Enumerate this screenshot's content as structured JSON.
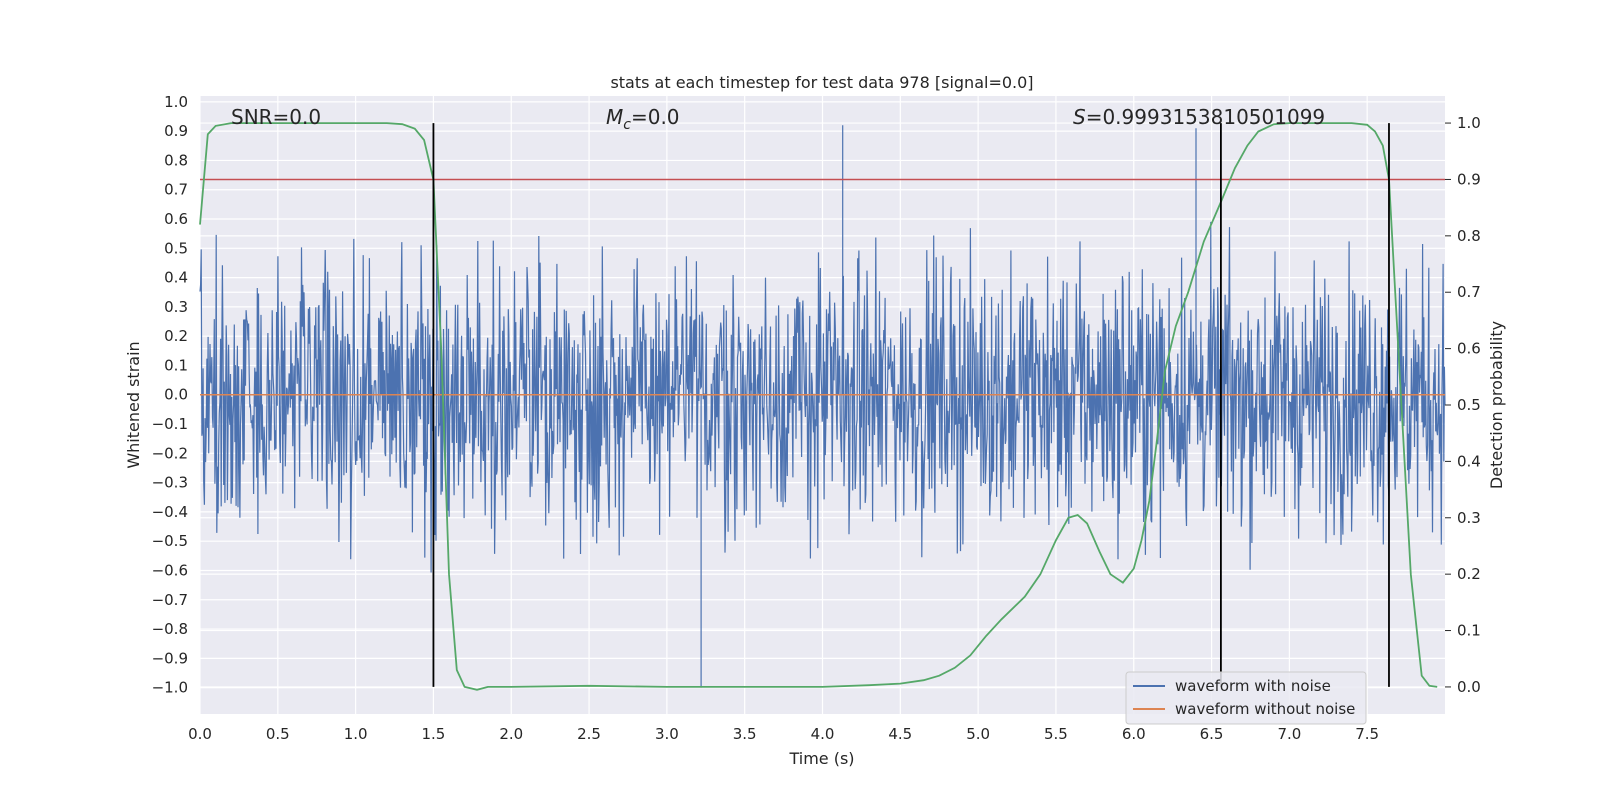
{
  "chart_data": {
    "type": "line",
    "title": "stats at each timestep for test data 978 [signal=0.0]",
    "xlabel": "Time (s)",
    "ylabel": "Whitened strain",
    "y2label": "Detection probability",
    "xlim": [
      0.0,
      8.0
    ],
    "ylim": [
      -1.09,
      1.02
    ],
    "y2lim": [
      -0.048,
      1.048
    ],
    "xticks": [
      "0.0",
      "0.5",
      "1.0",
      "1.5",
      "2.0",
      "2.5",
      "3.0",
      "3.5",
      "4.0",
      "4.5",
      "5.0",
      "5.5",
      "6.0",
      "6.5",
      "7.0",
      "7.5"
    ],
    "yticks": [
      "1.0",
      "0.9",
      "0.8",
      "0.7",
      "0.6",
      "0.5",
      "0.4",
      "0.3",
      "0.2",
      "0.1",
      "0.0",
      "-0.1",
      "-0.2",
      "-0.3",
      "-0.4",
      "-0.5",
      "-0.6",
      "-0.7",
      "-0.8",
      "-0.9",
      "-1.0"
    ],
    "y2ticks": [
      "1.0",
      "0.9",
      "0.8",
      "0.7",
      "0.6",
      "0.5",
      "0.4",
      "0.3",
      "0.2",
      "0.1",
      "0.0"
    ],
    "annotations": {
      "snr": "SNR=0.0",
      "mc_symbol": "M",
      "mc_sub": "c",
      "mc_value": "=0.0",
      "s_symbol": "S",
      "s_value": "=0.9993153810501099"
    },
    "threshold": 0.9,
    "vertical_lines_time": [
      1.5,
      6.56,
      7.64
    ],
    "series": [
      {
        "name": "waveform with noise",
        "color": "#4c72b0",
        "axis": "left",
        "sample_count": 2000,
        "typical_range": [
          -0.42,
          0.48
        ],
        "max": 0.92,
        "min": -1.0
      },
      {
        "name": "waveform without noise",
        "color": "#dd8452",
        "axis": "left",
        "values": [
          0.0,
          0.0
        ]
      },
      {
        "name": "detection probability",
        "color": "#55a868",
        "axis": "right",
        "x": [
          0.0,
          0.05,
          0.1,
          0.2,
          0.4,
          0.8,
          1.2,
          1.3,
          1.38,
          1.44,
          1.5,
          1.55,
          1.6,
          1.65,
          1.7,
          1.78,
          1.85,
          2.0,
          2.5,
          3.0,
          3.5,
          4.0,
          4.3,
          4.5,
          4.65,
          4.75,
          4.85,
          4.95,
          5.05,
          5.15,
          5.3,
          5.4,
          5.5,
          5.58,
          5.64,
          5.7,
          5.78,
          5.85,
          5.93,
          6.0,
          6.05,
          6.1,
          6.15,
          6.2,
          6.27,
          6.35,
          6.45,
          6.56,
          6.65,
          6.73,
          6.8,
          6.9,
          7.0,
          7.2,
          7.4,
          7.5,
          7.55,
          7.6,
          7.64,
          7.7,
          7.78,
          7.85,
          7.9,
          7.95
        ],
        "values": [
          0.82,
          0.98,
          0.995,
          1.0,
          1.0,
          1.0,
          1.0,
          0.998,
          0.99,
          0.97,
          0.9,
          0.6,
          0.2,
          0.03,
          0.0,
          -0.005,
          0.0,
          0.0,
          0.002,
          0.0,
          0.0,
          0.0,
          0.003,
          0.006,
          0.012,
          0.02,
          0.034,
          0.056,
          0.09,
          0.12,
          0.16,
          0.2,
          0.26,
          0.3,
          0.305,
          0.29,
          0.24,
          0.2,
          0.185,
          0.21,
          0.26,
          0.33,
          0.44,
          0.56,
          0.64,
          0.7,
          0.79,
          0.86,
          0.92,
          0.96,
          0.985,
          0.998,
          1.0,
          1.0,
          1.0,
          0.997,
          0.985,
          0.96,
          0.9,
          0.6,
          0.2,
          0.02,
          0.002,
          0.0
        ]
      }
    ],
    "legend": {
      "position": "bottom-right",
      "entries": [
        "waveform with noise",
        "waveform without noise"
      ]
    },
    "colors": {
      "background": "#eaeaf2",
      "grid": "#ffffff",
      "threshold": "#c44e52",
      "vertical_line": "#000000"
    }
  }
}
